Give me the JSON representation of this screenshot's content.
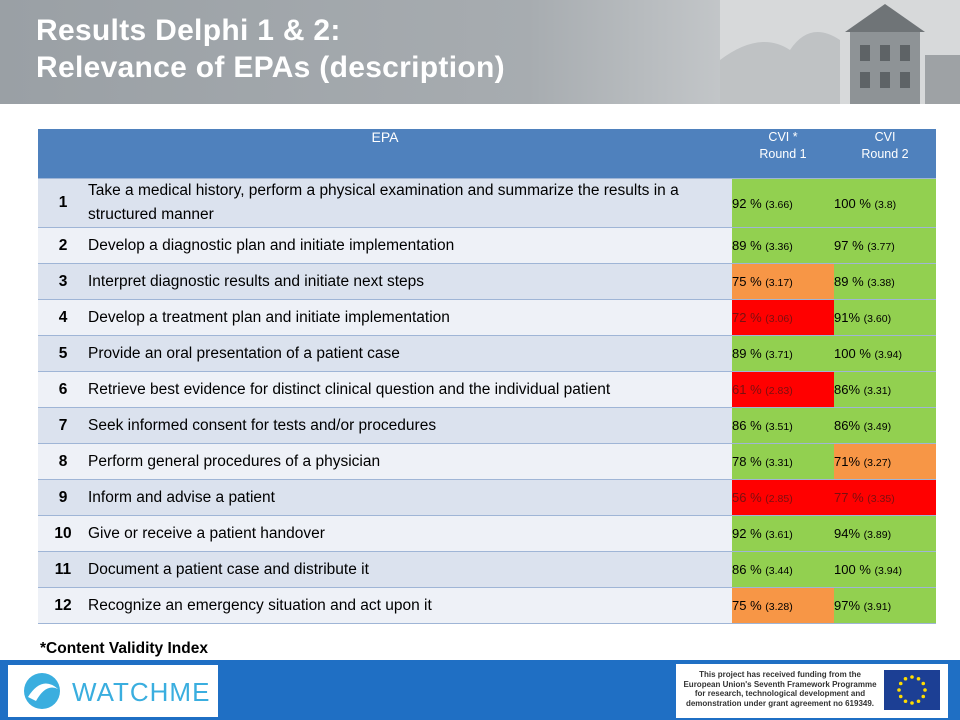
{
  "header": {
    "title_line1": "Results Delphi 1 & 2:",
    "title_line2": "Relevance of EPAs (description)"
  },
  "table": {
    "col_epa": "EPA",
    "col_r1_line1": "CVI *",
    "col_r1_line2": "Round 1",
    "col_r2_line1": "CVI",
    "col_r2_line2": "Round 2",
    "rows": [
      {
        "num": "1",
        "desc": "Take a medical history, perform a physical examination and summarize the results in a structured manner",
        "r1": "92 %",
        "r1s": "(3.66)",
        "r1c": "green",
        "r2": "100 %",
        "r2s": "(3.8)",
        "r2c": "green"
      },
      {
        "num": "2",
        "desc": "Develop a diagnostic plan and initiate implementation",
        "r1": "89 %",
        "r1s": "(3.36)",
        "r1c": "green",
        "r2": "97 %",
        "r2s": "(3.77)",
        "r2c": "green"
      },
      {
        "num": "3",
        "desc": "Interpret diagnostic results and initiate next steps",
        "r1": "75 %",
        "r1s": "(3.17)",
        "r1c": "orange",
        "r2": "89 %",
        "r2s": "(3.38)",
        "r2c": "green"
      },
      {
        "num": "4",
        "desc": "Develop a treatment plan and initiate implementation",
        "r1": "72 %",
        "r1s": "(3.06)",
        "r1c": "red",
        "r2": "91%",
        "r2s": "(3.60)",
        "r2c": "green"
      },
      {
        "num": "5",
        "desc": "Provide an oral presentation of a patient case",
        "r1": "89 %",
        "r1s": "(3.71)",
        "r1c": "green",
        "r2": "100 %",
        "r2s": "(3.94)",
        "r2c": "green"
      },
      {
        "num": "6",
        "desc": "Retrieve best evidence for distinct clinical question and the individual patient",
        "r1": "61 %",
        "r1s": "(2.83)",
        "r1c": "red",
        "r2": "86%",
        "r2s": "(3.31)",
        "r2c": "green"
      },
      {
        "num": "7",
        "desc": "Seek informed consent for tests and/or procedures",
        "r1": "86 %",
        "r1s": "(3.51)",
        "r1c": "green",
        "r2": "86%",
        "r2s": "(3.49)",
        "r2c": "green"
      },
      {
        "num": "8",
        "desc": "Perform general procedures of a physician",
        "r1": "78 %",
        "r1s": "(3.31)",
        "r1c": "green",
        "r2": "71%",
        "r2s": "(3.27)",
        "r2c": "orange"
      },
      {
        "num": "9",
        "desc": "Inform and advise a patient",
        "r1": "56 %",
        "r1s": "(2.85)",
        "r1c": "red",
        "r2": "77 %",
        "r2s": "(3.35)",
        "r2c": "red"
      },
      {
        "num": "10",
        "desc": "Give or receive a patient handover",
        "r1": "92 %",
        "r1s": "(3.61)",
        "r1c": "green",
        "r2": "94%",
        "r2s": "(3.89)",
        "r2c": "green"
      },
      {
        "num": "11",
        "desc": "Document a patient case and distribute it",
        "r1": "86 %",
        "r1s": "(3.44)",
        "r1c": "green",
        "r2": "100 %",
        "r2s": "(3.94)",
        "r2c": "green"
      },
      {
        "num": "12",
        "desc": "Recognize an emergency situation and act upon it",
        "r1": "75 %",
        "r1s": "(3.28)",
        "r1c": "orange",
        "r2": "97%",
        "r2s": "(3.91)",
        "r2c": "green"
      }
    ]
  },
  "footnote": "*Content Validity Index",
  "footer": {
    "logo_text": "WATCHME",
    "eu_text": "This project has received funding from the European Union's Seventh Framework Programme for research, technological development and demonstration under grant agreement no 619349."
  },
  "colors": {
    "header_blue": "#4f81bd",
    "green": "#92d050",
    "orange": "#f79646",
    "red": "#ff0000",
    "footer_blue": "#1f6fc4"
  }
}
